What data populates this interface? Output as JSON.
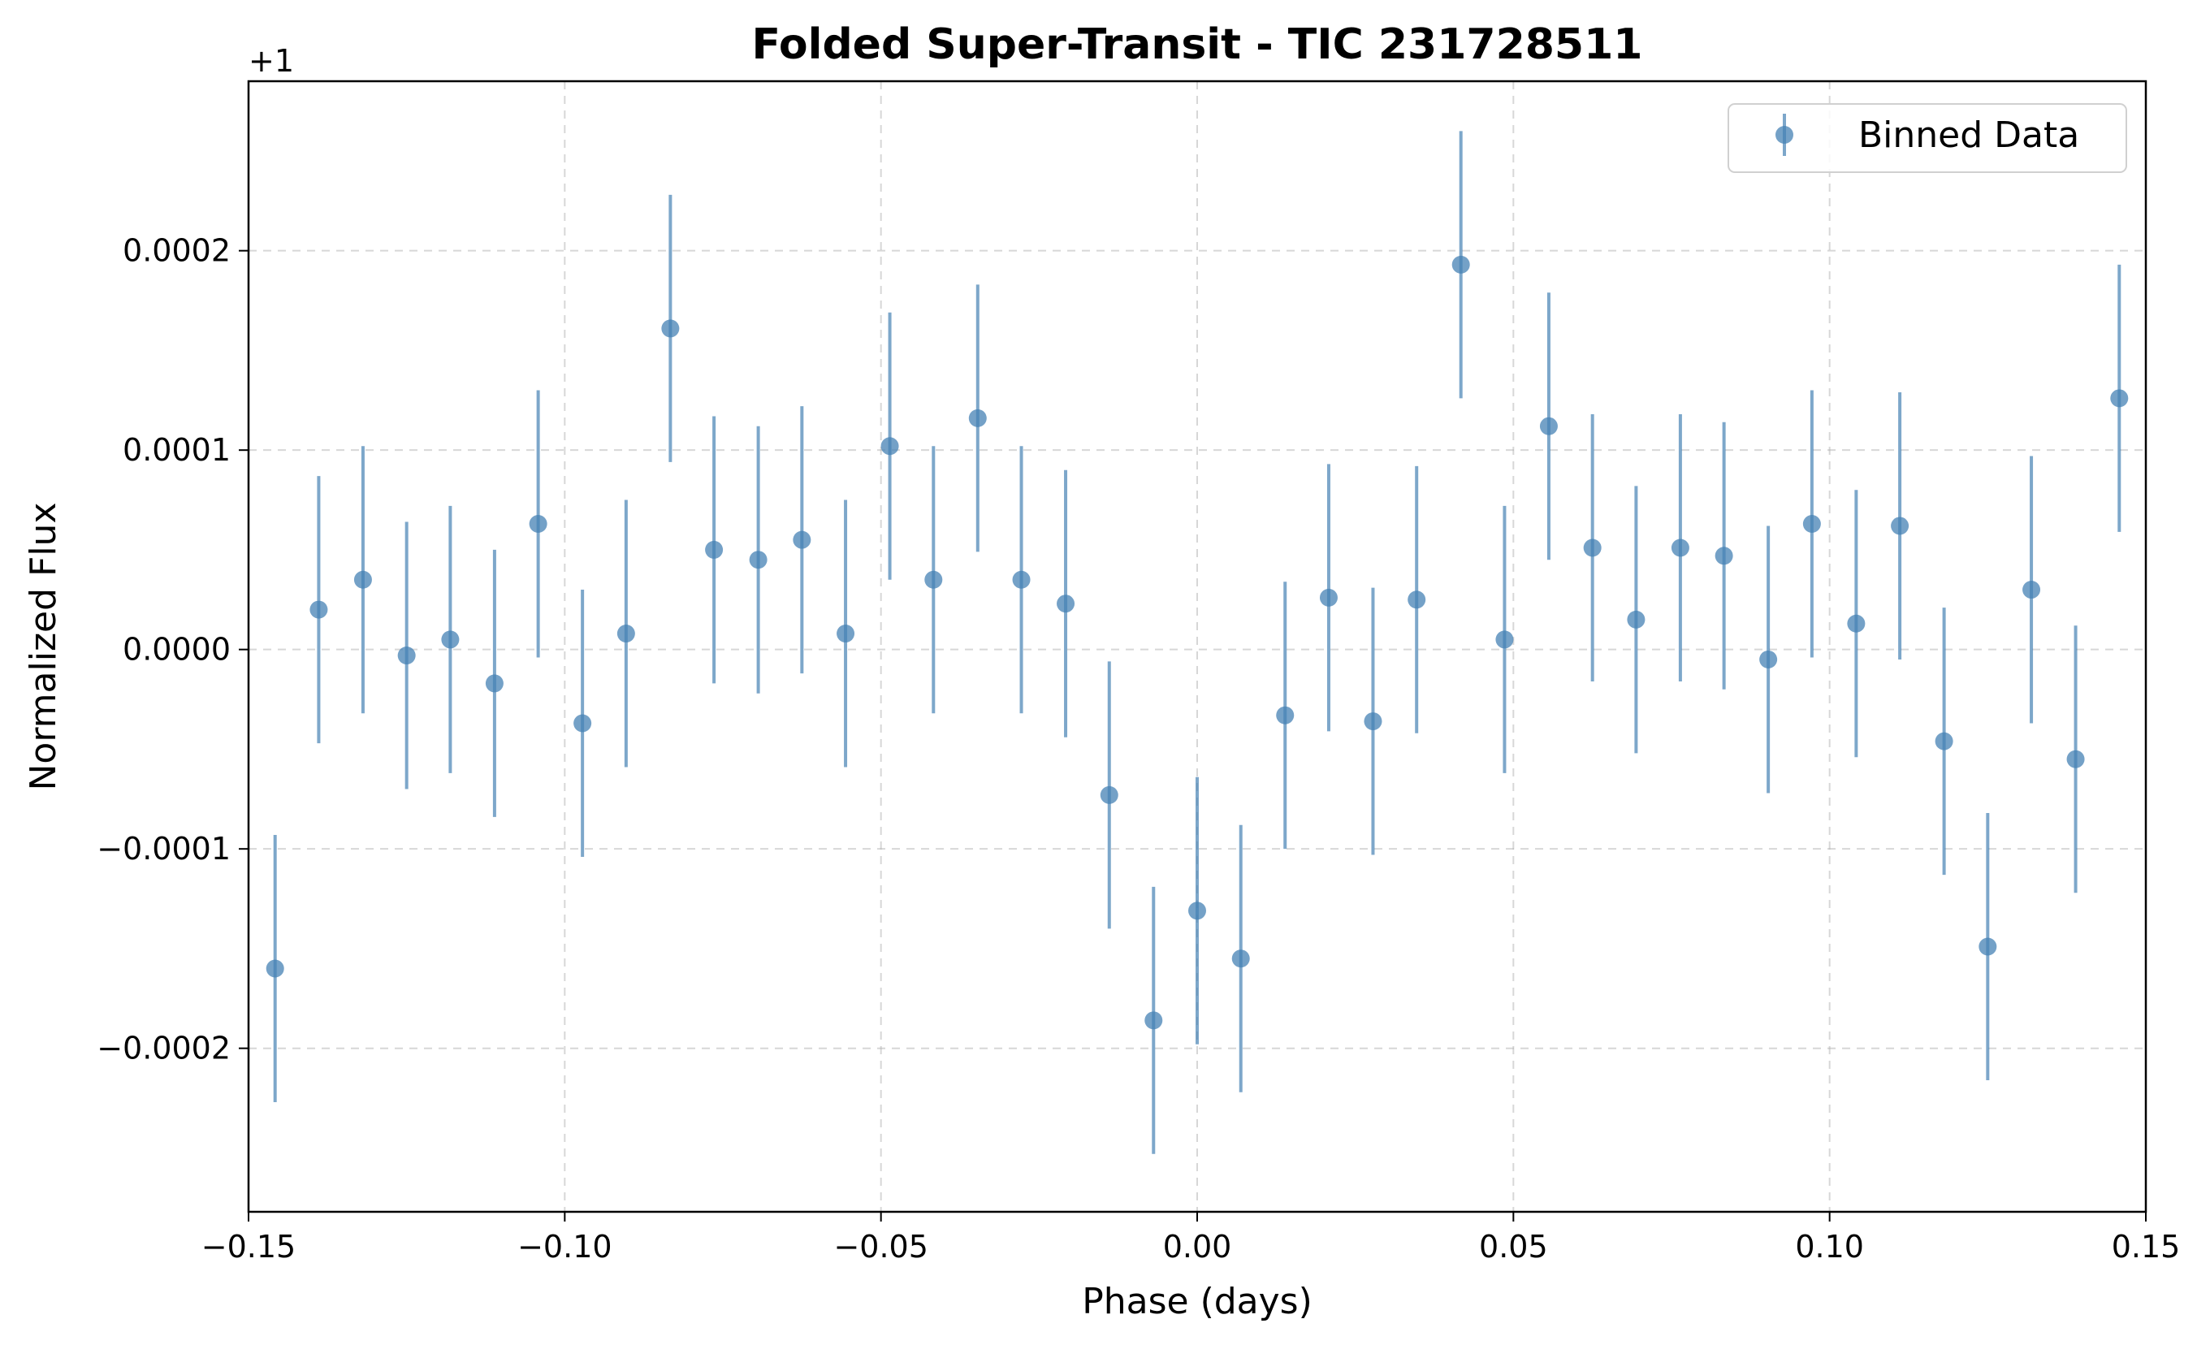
{
  "chart_data": {
    "type": "scatter",
    "title": "Folded Super-Transit - TIC 231728511",
    "xlabel": "Phase (days)",
    "ylabel": "Normalized Flux",
    "y_offset_label": "+1",
    "xlim": [
      -0.15,
      0.15
    ],
    "ylim": [
      -0.000282,
      0.000285
    ],
    "x_ticks": [
      -0.15,
      -0.1,
      -0.05,
      0.0,
      0.05,
      0.1,
      0.15
    ],
    "x_tick_labels": [
      "−0.15",
      "−0.10",
      "−0.05",
      "0.00",
      "0.05",
      "0.10",
      "0.15"
    ],
    "y_ticks": [
      -0.0002,
      -0.0001,
      0.0,
      0.0001,
      0.0002
    ],
    "y_tick_labels": [
      "−0.0002",
      "−0.0001",
      "0.0000",
      "0.0001",
      "0.0002"
    ],
    "grid": true,
    "legend_position": "top-right",
    "series": [
      {
        "name": "Binned Data",
        "color": "#4682b4",
        "x": [
          -0.1458,
          -0.1389,
          -0.1319,
          -0.125,
          -0.1181,
          -0.1111,
          -0.1042,
          -0.0972,
          -0.0903,
          -0.0833,
          -0.0764,
          -0.0694,
          -0.0625,
          -0.0556,
          -0.0486,
          -0.0417,
          -0.0347,
          -0.0278,
          -0.0208,
          -0.0139,
          -0.0069,
          0.0,
          0.0069,
          0.0139,
          0.0208,
          0.0278,
          0.0347,
          0.0417,
          0.0486,
          0.0556,
          0.0625,
          0.0694,
          0.0764,
          0.0833,
          0.0903,
          0.0972,
          0.1042,
          0.1111,
          0.1181,
          0.125,
          0.1319,
          0.1389,
          0.1458
        ],
        "y": [
          -0.00016,
          2e-05,
          3.5e-05,
          -3e-06,
          5e-06,
          -1.7e-05,
          6.3e-05,
          -3.7e-05,
          8e-06,
          0.000161,
          5e-05,
          4.5e-05,
          5.5e-05,
          8e-06,
          0.000102,
          3.5e-05,
          0.000116,
          3.5e-05,
          2.3e-05,
          -7.3e-05,
          -0.000186,
          -0.000131,
          -0.000155,
          -3.3e-05,
          2.6e-05,
          -3.6e-05,
          2.5e-05,
          0.000193,
          5e-06,
          0.000112,
          5.1e-05,
          1.5e-05,
          5.1e-05,
          4.7e-05,
          -5e-06,
          6.3e-05,
          1.3e-05,
          6.2e-05,
          -4.6e-05,
          -0.000149,
          3e-05,
          -5.5e-05,
          0.000126
        ],
        "yerr": [
          6.7e-05,
          6.7e-05,
          6.7e-05,
          6.7e-05,
          6.7e-05,
          6.7e-05,
          6.7e-05,
          6.7e-05,
          6.7e-05,
          6.7e-05,
          6.7e-05,
          6.7e-05,
          6.7e-05,
          6.7e-05,
          6.7e-05,
          6.7e-05,
          6.7e-05,
          6.7e-05,
          6.7e-05,
          6.7e-05,
          6.7e-05,
          6.7e-05,
          6.7e-05,
          6.7e-05,
          6.7e-05,
          6.7e-05,
          6.7e-05,
          6.7e-05,
          6.7e-05,
          6.7e-05,
          6.7e-05,
          6.7e-05,
          6.7e-05,
          6.7e-05,
          6.7e-05,
          6.7e-05,
          6.7e-05,
          6.7e-05,
          6.7e-05,
          6.7e-05,
          6.7e-05,
          6.7e-05,
          6.7e-05
        ]
      }
    ]
  }
}
